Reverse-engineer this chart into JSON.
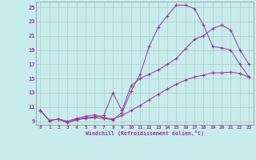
{
  "title": "Windchill (Refroidissement éolien,°C)",
  "bg_color": "#c8ecec",
  "grid_color": "#b0c8c8",
  "line_color": "#993399",
  "xlim": [
    0,
    23
  ],
  "ylim": [
    9,
    25
  ],
  "xticks": [
    0,
    1,
    2,
    3,
    4,
    5,
    6,
    7,
    8,
    9,
    10,
    11,
    12,
    13,
    14,
    15,
    16,
    17,
    18,
    19,
    20,
    21,
    22,
    23
  ],
  "yticks": [
    9,
    11,
    13,
    15,
    17,
    19,
    21,
    23,
    25
  ],
  "curve1_x": [
    0,
    1,
    2,
    3,
    4,
    5,
    6,
    7,
    8,
    9,
    10,
    11,
    12,
    13,
    14,
    15,
    16,
    17,
    18,
    19,
    20,
    21,
    22,
    23
  ],
  "curve1_y": [
    10.5,
    9.1,
    9.3,
    8.8,
    9.2,
    9.4,
    9.5,
    9.4,
    9.2,
    10.2,
    13.2,
    15.6,
    19.5,
    22.2,
    23.8,
    25.3,
    25.3,
    24.8,
    22.5,
    19.5,
    19.3,
    19.0,
    17.0,
    15.2
  ],
  "curve2_x": [
    0,
    1,
    2,
    3,
    4,
    5,
    6,
    7,
    8,
    9,
    10,
    11,
    12,
    13,
    14,
    15,
    16,
    17,
    18,
    19,
    20,
    21,
    22,
    23
  ],
  "curve2_y": [
    10.5,
    9.1,
    9.3,
    8.8,
    9.3,
    9.5,
    9.6,
    9.8,
    13.0,
    10.5,
    14.0,
    15.0,
    15.6,
    16.2,
    17.0,
    17.8,
    19.2,
    20.5,
    21.0,
    22.0,
    22.5,
    21.8,
    19.0,
    17.0
  ],
  "curve3_x": [
    0,
    1,
    2,
    3,
    4,
    5,
    6,
    7,
    8,
    9,
    10,
    11,
    12,
    13,
    14,
    15,
    16,
    17,
    18,
    19,
    20,
    21,
    22,
    23
  ],
  "curve3_y": [
    10.5,
    9.1,
    9.3,
    9.0,
    9.4,
    9.7,
    9.9,
    9.5,
    9.3,
    9.8,
    10.5,
    11.2,
    12.0,
    12.8,
    13.5,
    14.2,
    14.8,
    15.2,
    15.5,
    15.8,
    15.8,
    15.9,
    15.7,
    15.2
  ]
}
